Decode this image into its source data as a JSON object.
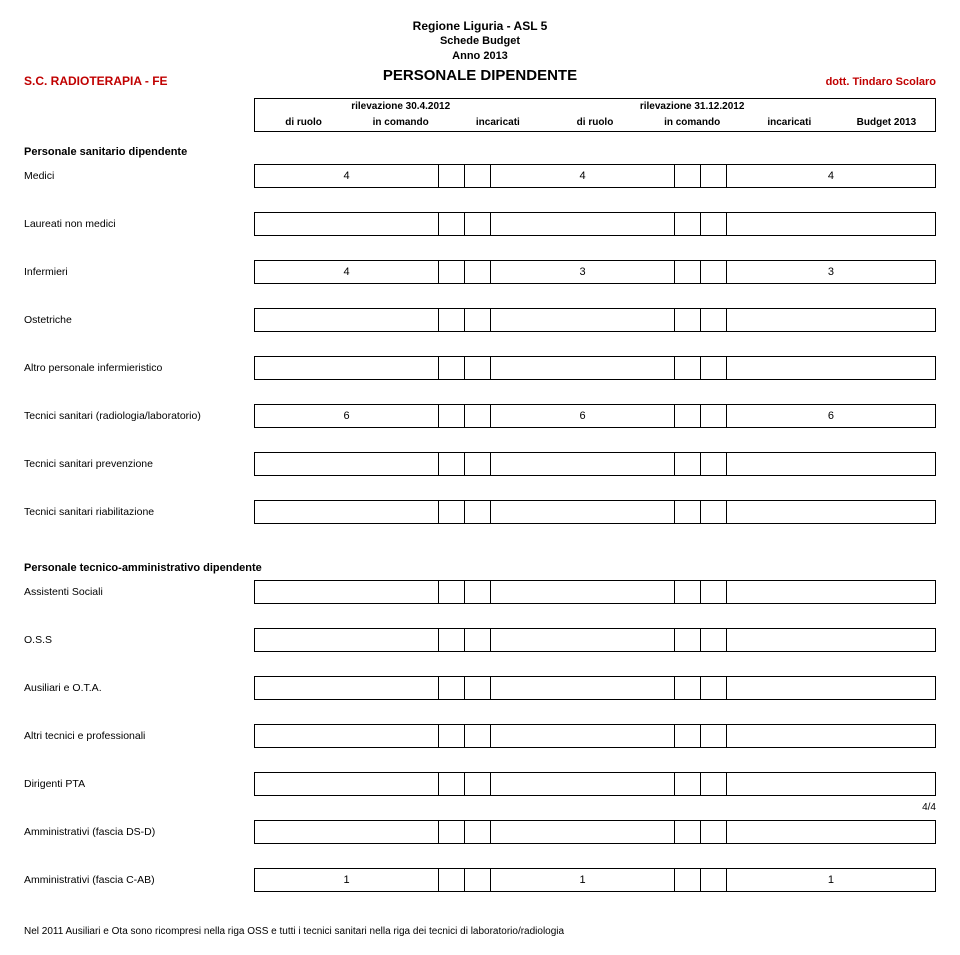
{
  "header": {
    "line1": "Regione Liguria - ASL 5",
    "line2": "Schede Budget",
    "line3": "Anno 2013",
    "big": "PERSONALE DIPENDENTE",
    "left": "S.C. RADIOTERAPIA - FE",
    "right": "dott. Tindaro Scolaro"
  },
  "columns": {
    "group1": "rilevazione 30.4.2012",
    "group2": "rilevazione 31.12.2012",
    "sub1": "di ruolo",
    "sub2": "in comando",
    "sub3": "incaricati",
    "sub4": "di ruolo",
    "sub5": "in comando",
    "sub6": "incaricati",
    "budget": "Budget 2013"
  },
  "section1_title": "Personale sanitario dipendente",
  "rows1": [
    {
      "label": "Medici",
      "v": [
        "4",
        "",
        "",
        "4",
        "",
        "",
        "4"
      ]
    },
    {
      "label": "Laureati non medici",
      "v": [
        "",
        "",
        "",
        "",
        "",
        "",
        ""
      ]
    },
    {
      "label": "Infermieri",
      "v": [
        "4",
        "",
        "",
        "3",
        "",
        "",
        "3"
      ]
    },
    {
      "label": "Ostetriche",
      "v": [
        "",
        "",
        "",
        "",
        "",
        "",
        ""
      ]
    },
    {
      "label": "Altro personale infermieristico",
      "v": [
        "",
        "",
        "",
        "",
        "",
        "",
        ""
      ]
    },
    {
      "label": "Tecnici sanitari (radiologia/laboratorio)",
      "v": [
        "6",
        "",
        "",
        "6",
        "",
        "",
        "6"
      ]
    },
    {
      "label": "Tecnici sanitari prevenzione",
      "v": [
        "",
        "",
        "",
        "",
        "",
        "",
        ""
      ]
    },
    {
      "label": "Tecnici sanitari riabilitazione",
      "v": [
        "",
        "",
        "",
        "",
        "",
        "",
        ""
      ]
    }
  ],
  "section2_title": "Personale tecnico-amministrativo dipendente",
  "rows2": [
    {
      "label": "Assistenti Sociali",
      "v": [
        "",
        "",
        "",
        "",
        "",
        "",
        ""
      ]
    },
    {
      "label": "O.S.S",
      "v": [
        "",
        "",
        "",
        "",
        "",
        "",
        ""
      ]
    },
    {
      "label": "Ausiliari e O.T.A.",
      "v": [
        "",
        "",
        "",
        "",
        "",
        "",
        ""
      ]
    },
    {
      "label": "Altri tecnici e professionali",
      "v": [
        "",
        "",
        "",
        "",
        "",
        "",
        ""
      ]
    },
    {
      "label": "Dirigenti PTA",
      "v": [
        "",
        "",
        "",
        "",
        "",
        "",
        ""
      ]
    },
    {
      "label": "Amministrativi (fascia DS-D)",
      "v": [
        "",
        "",
        "",
        "",
        "",
        "",
        ""
      ]
    },
    {
      "label": "Amministrativi (fascia C-AB)",
      "v": [
        "1",
        "",
        "",
        "1",
        "",
        "",
        "1"
      ]
    }
  ],
  "footnote": "Nel 2011 Ausiliari e Ota sono ricompresi nella riga OSS e tutti i tecnici sanitari nella riga dei tecnici di laboratorio/radiologia",
  "pagenum": "4/4"
}
